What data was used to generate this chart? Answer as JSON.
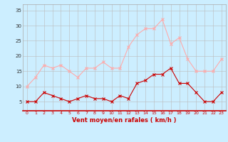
{
  "hours": [
    0,
    1,
    2,
    3,
    4,
    5,
    6,
    7,
    8,
    9,
    10,
    11,
    12,
    13,
    14,
    15,
    16,
    17,
    18,
    19,
    20,
    21,
    22,
    23
  ],
  "wind_avg": [
    5,
    5,
    8,
    7,
    6,
    5,
    6,
    7,
    6,
    6,
    5,
    7,
    6,
    11,
    12,
    14,
    14,
    16,
    11,
    11,
    8,
    5,
    5,
    8
  ],
  "wind_gust": [
    10,
    13,
    17,
    16,
    17,
    15,
    13,
    16,
    16,
    18,
    16,
    16,
    23,
    27,
    29,
    29,
    32,
    24,
    26,
    19,
    15,
    15,
    15,
    19
  ],
  "color_avg": "#cc0000",
  "color_gust": "#ffaaaa",
  "bg_color": "#cceeff",
  "grid_color": "#bbbbbb",
  "xlabel": "Vent moyen/en rafales ( km/h )",
  "xlabel_color": "#cc0000",
  "yticks": [
    5,
    10,
    15,
    20,
    25,
    30,
    35
  ],
  "ylim": [
    2,
    37
  ],
  "xlim": [
    -0.5,
    23.5
  ]
}
